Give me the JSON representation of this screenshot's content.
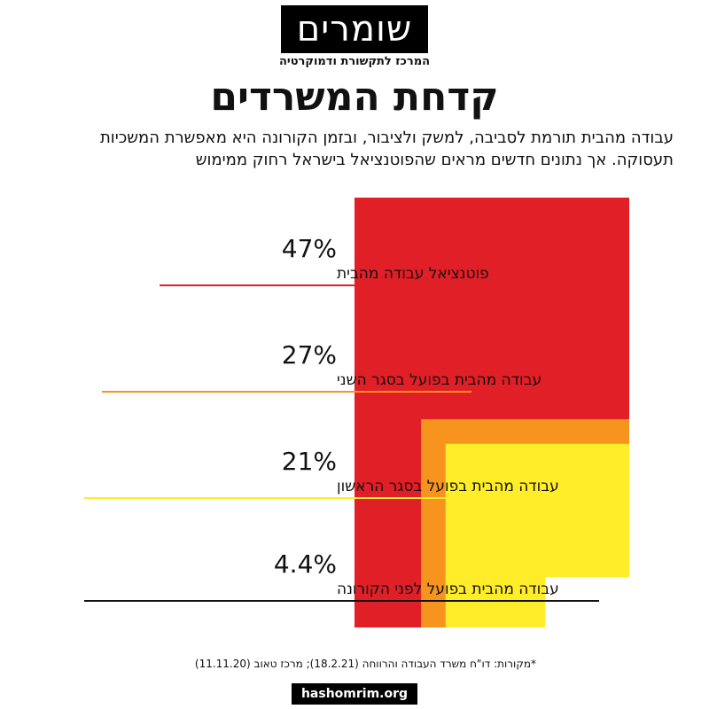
{
  "brand": {
    "logo_text": "שומרים",
    "logo_subtitle": "המרכז לתקשורת ודמוקרטיה",
    "website": "hashomrim.org"
  },
  "header": {
    "title": "קדחת המשרדים",
    "subtitle": "עבודה מהבית תורמת לסביבה, למשק ולציבור, ובזמן הקורונה היא מאפשרת המשכיות תעסוקה. אך נתונים חדשים מראים שהפוטנציאל בישראל רחוק ממימוש"
  },
  "chart_data": {
    "type": "area",
    "unit": "%",
    "series": [
      {
        "label_value": "47%",
        "value": 47,
        "label": "פוטנציאל עבודה מהבית",
        "color": "#e01f26"
      },
      {
        "label_value": "27%",
        "value": 27,
        "label": "עבודה מהבית בפועל בסגר השני",
        "color": "#f7941d"
      },
      {
        "label_value": "21%",
        "value": 21,
        "label": "עבודה מהבית בפועל בסגר הראשון",
        "color": "#ffed29"
      },
      {
        "label_value": "4.4%",
        "value": 4.4,
        "label": "עבודה מהבית בפועל לפני הקורונה",
        "color": "#ffffff"
      }
    ]
  },
  "footer": {
    "sources": "*מקורות: דו\"ח משרד העבודה והרווחה (18.2.21); מרכז טאוב (11.11.20)"
  }
}
